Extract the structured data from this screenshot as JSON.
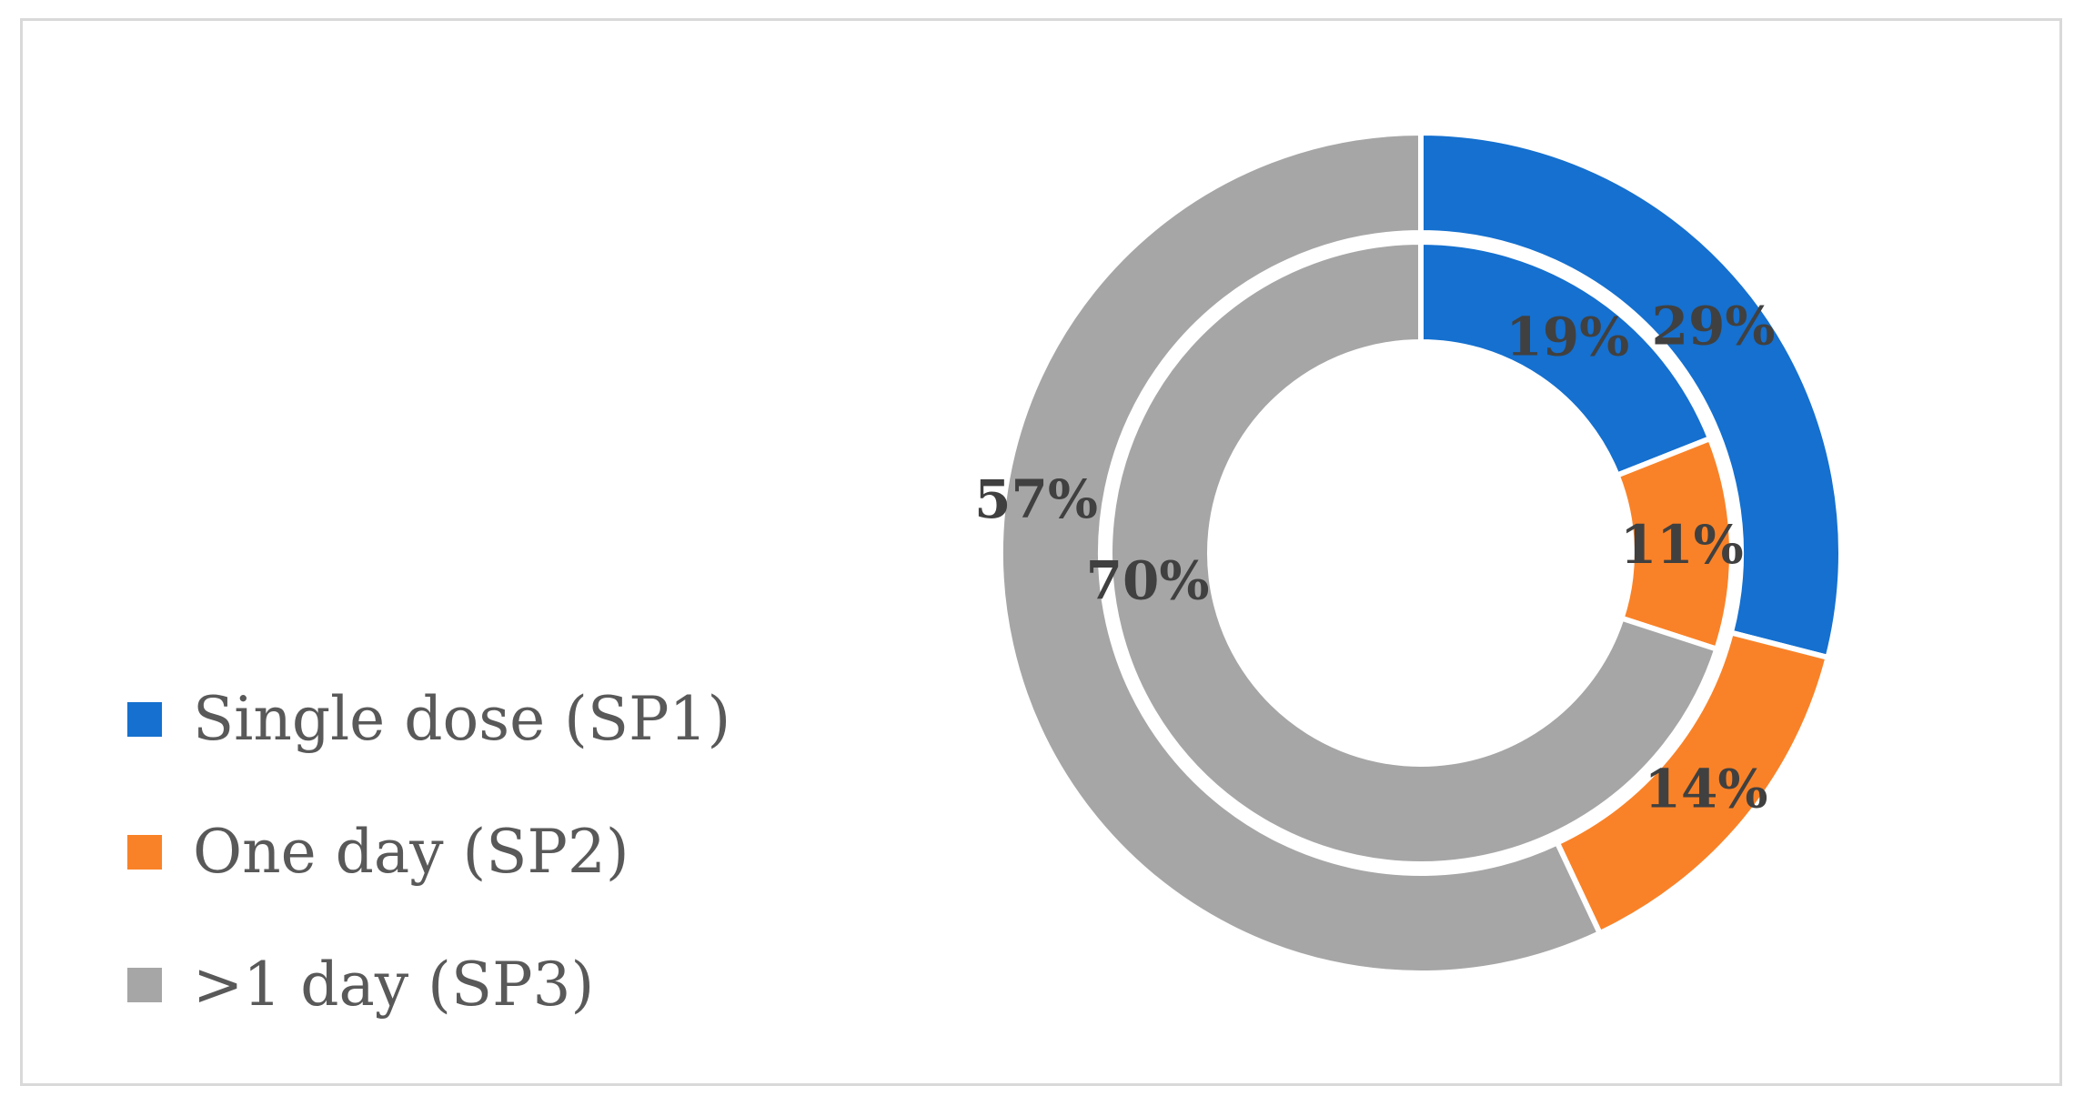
{
  "chart_data": {
    "type": "pie",
    "subtype": "doughnut",
    "title": "",
    "categories": [
      "Single dose (SP1)",
      "One day (SP2)",
      ">1 day (SP3)"
    ],
    "colors": [
      "#1570cf",
      "#f98228",
      "#a6a6a6"
    ],
    "series": [
      {
        "ring": "inner",
        "values": [
          19,
          11,
          70
        ],
        "labels": [
          "19%",
          "11%",
          "70%"
        ]
      },
      {
        "ring": "outer",
        "values": [
          29,
          14,
          57
        ],
        "labels": [
          "29%",
          "14%",
          "57%"
        ]
      }
    ],
    "value_unit": "%",
    "legend_position": "left"
  }
}
